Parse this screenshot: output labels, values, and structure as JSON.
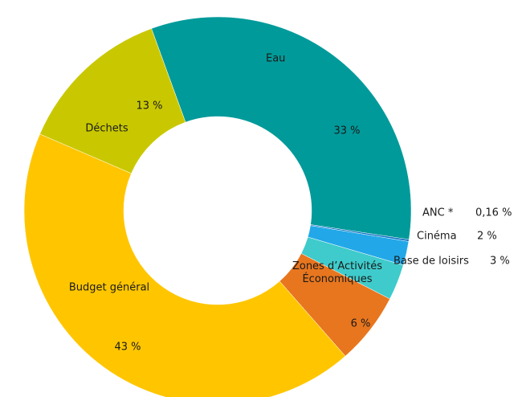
{
  "chart_data": {
    "type": "donut",
    "categories": [
      "Eau",
      "ANC *",
      "Cinéma",
      "Base de loisirs",
      "Zones d’Activités Économiques",
      "Budget général",
      "Déchets"
    ],
    "values": [
      33,
      0.16,
      2,
      3,
      6,
      43,
      13
    ],
    "value_labels": [
      "33 %",
      "0,16 %",
      "2 %",
      "3 %",
      "6 %",
      "43 %",
      "13 %"
    ],
    "colors": [
      "#009a9a",
      "#0a6fc2",
      "#22a8e8",
      "#3fcbcb",
      "#e8761e",
      "#ffc600",
      "#c9c800"
    ]
  }
}
